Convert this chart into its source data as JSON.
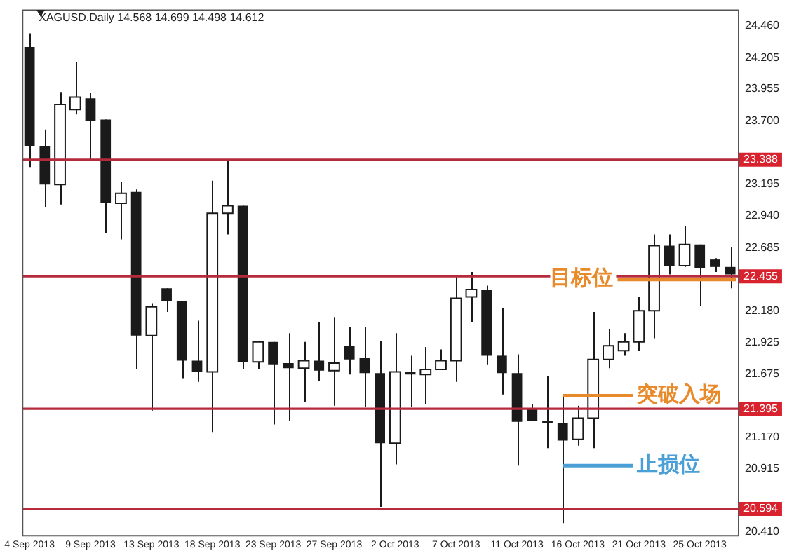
{
  "chart_data": {
    "type": "candlestick",
    "title": "XAGUSD.Daily 14.568 14.699 14.498 14.612",
    "categories": [
      "4 Sep 2013",
      null,
      null,
      null,
      "9 Sep 2013",
      null,
      null,
      null,
      "13 Sep 2013",
      null,
      null,
      null,
      "18 Sep 2013",
      null,
      null,
      null,
      "23 Sep 2013",
      null,
      null,
      null,
      "27 Sep 2013",
      null,
      null,
      null,
      "2 Oct 2013",
      null,
      null,
      null,
      "7 Oct 2013",
      null,
      null,
      null,
      "11 Oct 2013",
      null,
      null,
      null,
      "16 Oct 2013",
      null,
      null,
      null,
      "21 Oct 2013",
      null,
      null,
      null,
      "25 Oct 2013",
      null,
      null
    ],
    "ohlc": [
      [
        24.29,
        24.4,
        23.33,
        23.5
      ],
      [
        23.5,
        23.63,
        23.01,
        23.19
      ],
      [
        23.19,
        23.93,
        23.03,
        23.83
      ],
      [
        23.79,
        24.17,
        23.75,
        23.89
      ],
      [
        23.88,
        23.92,
        23.39,
        23.7
      ],
      [
        23.71,
        23.71,
        22.8,
        23.04
      ],
      [
        23.04,
        23.21,
        22.75,
        23.12
      ],
      [
        23.13,
        23.15,
        21.71,
        21.98
      ],
      [
        21.98,
        22.24,
        21.38,
        22.21
      ],
      [
        22.36,
        22.36,
        22.17,
        22.26
      ],
      [
        22.26,
        22.26,
        21.64,
        21.78
      ],
      [
        21.78,
        22.1,
        21.61,
        21.69
      ],
      [
        21.69,
        23.22,
        21.21,
        22.96
      ],
      [
        22.96,
        23.39,
        22.79,
        23.02
      ],
      [
        23.02,
        23.02,
        21.71,
        21.77
      ],
      [
        21.77,
        21.93,
        21.71,
        21.93
      ],
      [
        21.93,
        21.93,
        21.27,
        21.75
      ],
      [
        21.76,
        22.0,
        21.3,
        21.72
      ],
      [
        21.72,
        21.93,
        21.45,
        21.78
      ],
      [
        21.78,
        22.09,
        21.62,
        21.7
      ],
      [
        21.7,
        22.13,
        21.42,
        21.76
      ],
      [
        21.9,
        22.05,
        21.67,
        21.79
      ],
      [
        21.8,
        22.05,
        21.41,
        21.68
      ],
      [
        21.68,
        21.94,
        20.61,
        21.12
      ],
      [
        21.12,
        22.0,
        20.95,
        21.69
      ],
      [
        21.69,
        21.82,
        21.41,
        21.67
      ],
      [
        21.67,
        21.89,
        21.43,
        21.71
      ],
      [
        21.71,
        21.87,
        21.71,
        21.78
      ],
      [
        21.78,
        22.45,
        21.61,
        22.28
      ],
      [
        22.29,
        22.49,
        22.09,
        22.35
      ],
      [
        22.35,
        22.38,
        21.75,
        21.82
      ],
      [
        21.82,
        22.2,
        21.51,
        21.68
      ],
      [
        21.68,
        21.83,
        20.94,
        21.29
      ],
      [
        21.39,
        21.43,
        21.3,
        21.3
      ],
      [
        21.3,
        21.66,
        21.08,
        21.28
      ],
      [
        21.28,
        21.5,
        20.48,
        21.14
      ],
      [
        21.15,
        21.42,
        21.1,
        21.32
      ],
      [
        21.32,
        22.17,
        21.08,
        21.79
      ],
      [
        21.79,
        22.03,
        21.72,
        21.9
      ],
      [
        21.86,
        22.0,
        21.82,
        21.93
      ],
      [
        21.93,
        22.29,
        21.86,
        22.18
      ],
      [
        22.18,
        22.79,
        21.96,
        22.7
      ],
      [
        22.7,
        22.79,
        22.47,
        22.54
      ],
      [
        22.54,
        22.86,
        22.53,
        22.71
      ],
      [
        22.71,
        22.71,
        22.22,
        22.52
      ],
      [
        22.59,
        22.6,
        22.49,
        22.53
      ],
      [
        22.53,
        22.69,
        22.36,
        22.47
      ]
    ],
    "ylim": [
      20.385,
      24.59
    ],
    "yticks": [
      {
        "value": 24.46,
        "label": "24.460"
      },
      24.205,
      23.955,
      {
        "value": 23.7,
        "label": "23.700"
      },
      23.195,
      {
        "value": 22.94,
        "label": "22.940"
      },
      22.685,
      {
        "value": 22.18,
        "label": "22.180"
      },
      21.925,
      21.675,
      {
        "value": 21.17,
        "label": "21.170"
      },
      20.915,
      {
        "value": 20.41,
        "label": "20.410"
      }
    ],
    "ref_lines": [
      {
        "axis": "y",
        "value": 23.388,
        "label": "23.388",
        "color": "#b52a3c"
      },
      {
        "axis": "y",
        "value": 22.455,
        "label": "22.455",
        "color": "#b52a3c"
      },
      {
        "axis": "y",
        "value": 21.395,
        "label": "21.395",
        "color": "#b52a3c"
      },
      {
        "axis": "y",
        "value": 20.594,
        "label": "20.594",
        "color": "#b52a3c"
      },
      {
        "axis": "y",
        "value": 22.43,
        "label": "目标位",
        "color": "#e88a2a"
      },
      {
        "axis": "y",
        "value": 21.5,
        "label": "突破入场",
        "color": "#e88a2a"
      },
      {
        "axis": "y",
        "value": 20.94,
        "label": "止损位",
        "color": "#4a9fd6"
      }
    ],
    "grid": false,
    "legend": false
  }
}
